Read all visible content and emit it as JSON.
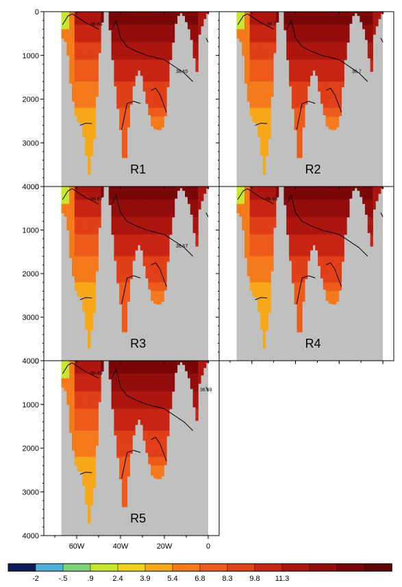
{
  "chart_data": {
    "type": "heatmap",
    "title": "",
    "xlabel": "",
    "ylabel": "",
    "x_range_deg": [
      -75,
      5
    ],
    "y_range": [
      0,
      4000
    ],
    "y_inverted": true,
    "x_ticks": [
      {
        "value": -60,
        "label": "60W"
      },
      {
        "value": -40,
        "label": "40W"
      },
      {
        "value": -20,
        "label": "20W"
      },
      {
        "value": 0,
        "label": "0"
      }
    ],
    "y_ticks": [
      {
        "value": 0,
        "label": "0"
      },
      {
        "value": 1000,
        "label": "1000"
      },
      {
        "value": 2000,
        "label": "2000"
      },
      {
        "value": 3000,
        "label": "3000"
      },
      {
        "value": 4000,
        "label": "4000"
      }
    ],
    "colorbar": {
      "colors": [
        "#0d1a5c",
        "#4fb0d9",
        "#7ed37a",
        "#c8e62e",
        "#f0d21a",
        "#f7a819",
        "#f47a1b",
        "#ee5a1a",
        "#e03f18",
        "#c82414",
        "#ad150f",
        "#920d0b",
        "#7a0707",
        "#5e0404"
      ],
      "labels": [
        "-2",
        "-.5",
        ".9",
        "2.4",
        "3.9",
        "5.4",
        "6.8",
        "8.3",
        "9.8",
        "11.3"
      ]
    },
    "panels": [
      {
        "label": "R1",
        "contour_labels": [
          {
            "text": "36.65"
          },
          {
            "text": "36.65"
          }
        ]
      },
      {
        "label": "R2",
        "contour_labels": [
          {
            "text": "36.7"
          },
          {
            "text": "36.7"
          }
        ]
      },
      {
        "label": "R3",
        "contour_labels": [
          {
            "text": "36.67"
          },
          {
            "text": "36.67"
          }
        ]
      },
      {
        "label": "R4",
        "contour_labels": [
          {
            "text": "36.68"
          }
        ]
      },
      {
        "label": "R5",
        "contour_labels": [
          {
            "text": "36.69"
          },
          {
            "text": "36.69"
          }
        ]
      }
    ]
  }
}
